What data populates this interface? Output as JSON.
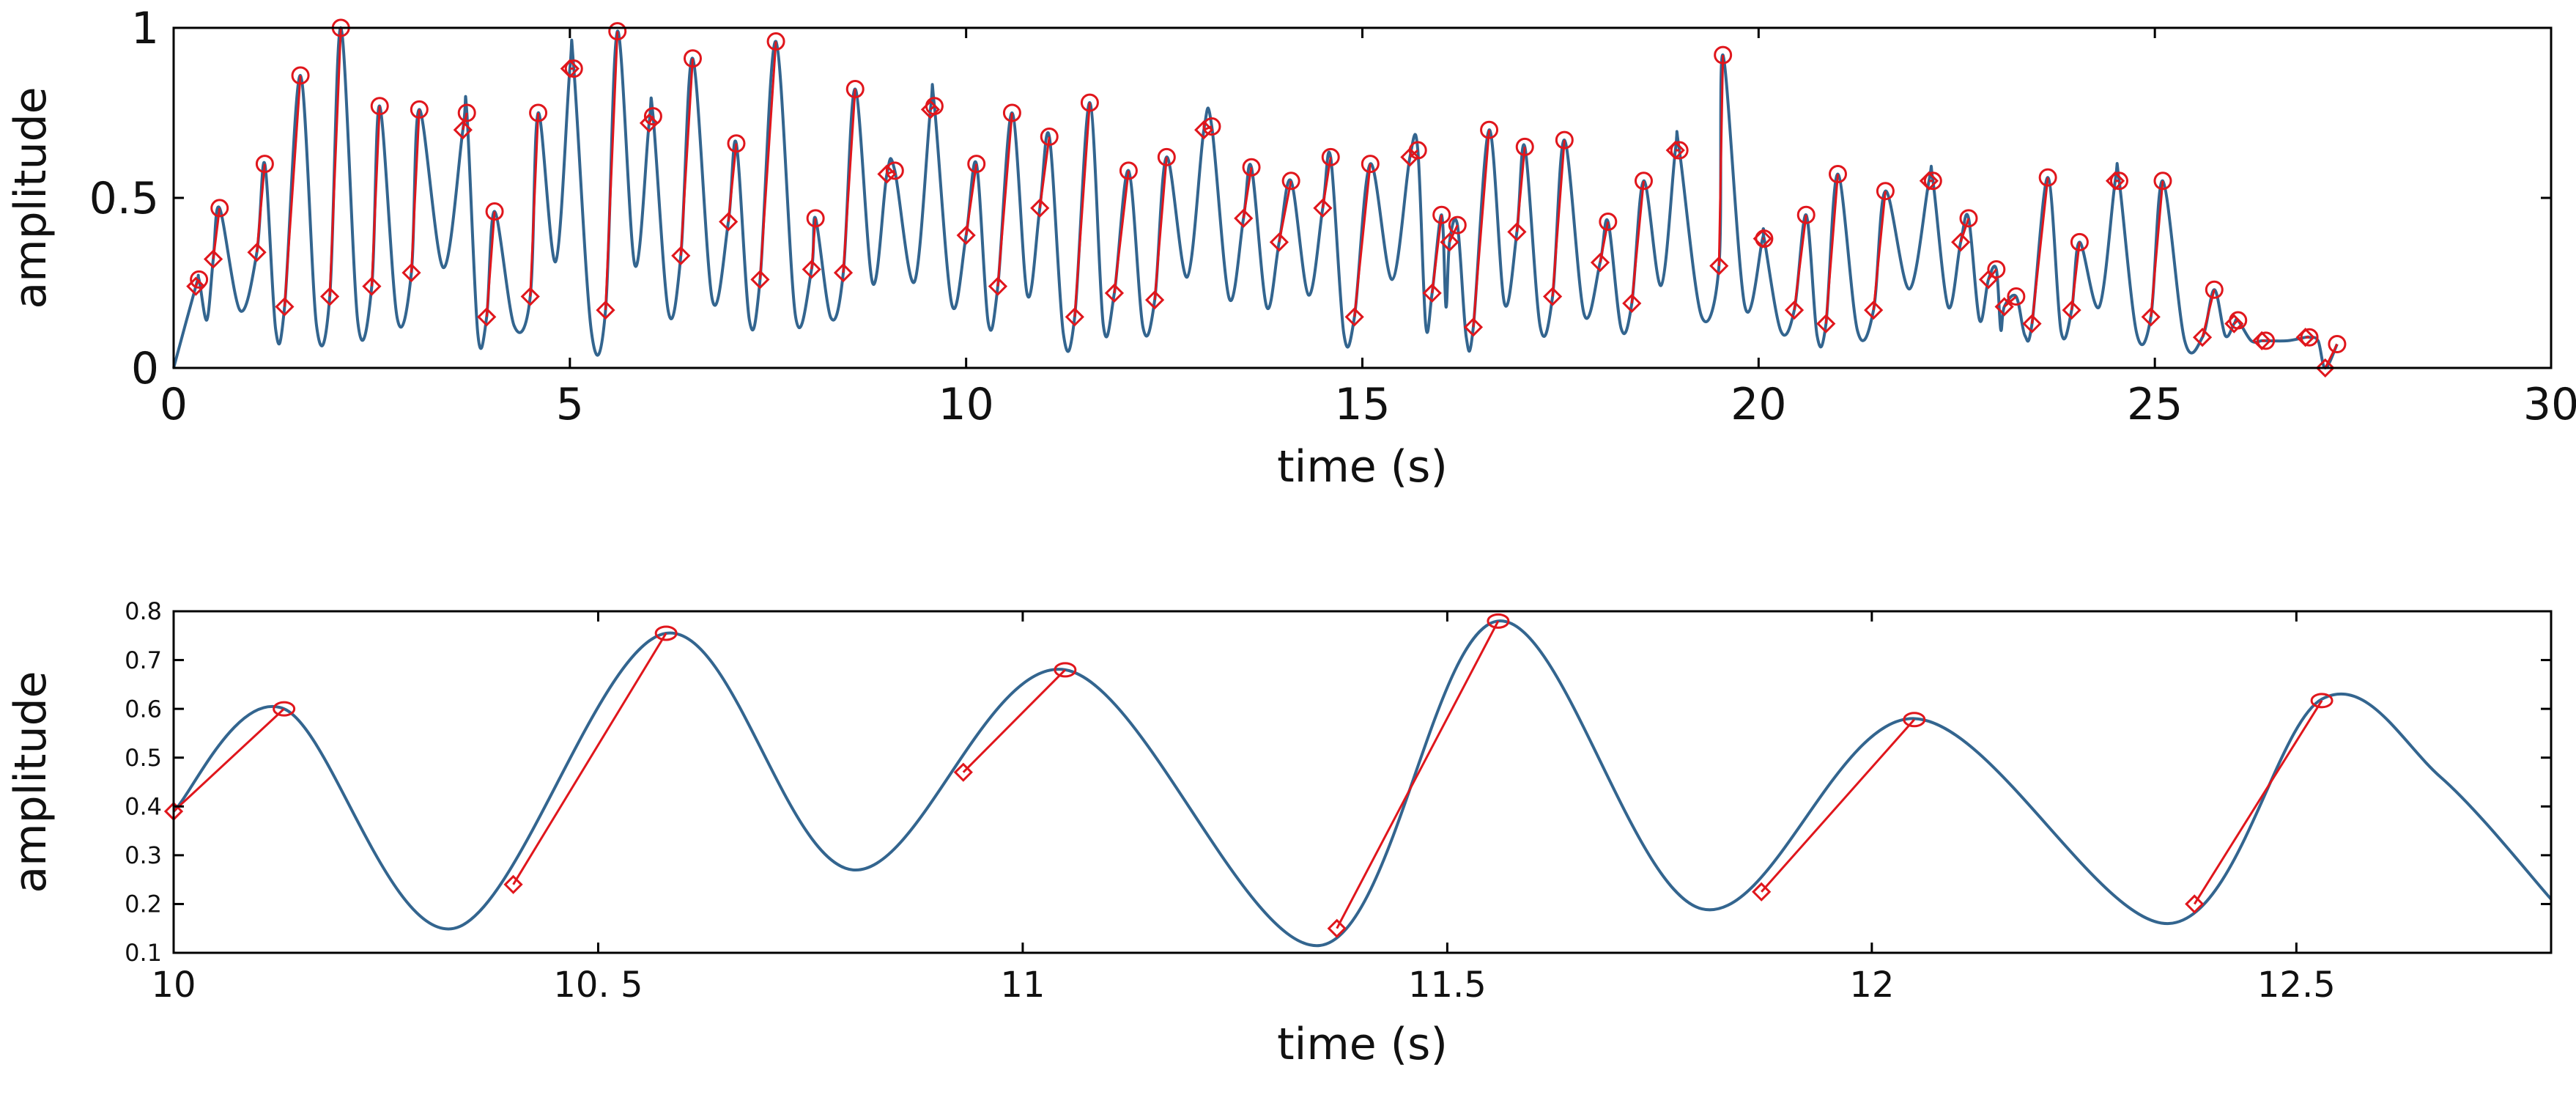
{
  "colors": {
    "signal": "#33658f",
    "marker": "#e0161c",
    "axis": "#000000"
  },
  "chart_data": [
    {
      "type": "line",
      "xlabel": "time (s)",
      "ylabel": "amplitude",
      "xlim": [
        0,
        30
      ],
      "ylim": [
        0,
        1
      ],
      "xticks": [
        0,
        5,
        10,
        15,
        20,
        25,
        30
      ],
      "xtick_labels": [
        "0",
        "5",
        "10",
        "15",
        "20",
        "25",
        "30"
      ],
      "yticks": [
        0,
        0.5,
        1
      ],
      "ytick_labels": [
        "0",
        "0.5",
        "1"
      ],
      "signal_end": 27.3,
      "onset_peak_pairs": [
        [
          0.28,
          0.24,
          0.32,
          0.26
        ],
        [
          0.5,
          0.32,
          0.58,
          0.47
        ],
        [
          1.05,
          0.34,
          1.15,
          0.6
        ],
        [
          1.4,
          0.18,
          1.6,
          0.86
        ],
        [
          1.97,
          0.21,
          2.11,
          1.0
        ],
        [
          2.5,
          0.24,
          2.6,
          0.77
        ],
        [
          3.0,
          0.28,
          3.1,
          0.76
        ],
        [
          3.65,
          0.7,
          3.7,
          0.75
        ],
        [
          3.95,
          0.15,
          4.05,
          0.46
        ],
        [
          4.5,
          0.21,
          4.6,
          0.75
        ],
        [
          5.0,
          0.88,
          5.05,
          0.88
        ],
        [
          5.45,
          0.17,
          5.6,
          0.99
        ],
        [
          6.0,
          0.72,
          6.05,
          0.74
        ],
        [
          6.4,
          0.33,
          6.55,
          0.91
        ],
        [
          7.0,
          0.43,
          7.1,
          0.66
        ],
        [
          7.4,
          0.26,
          7.6,
          0.96
        ],
        [
          8.05,
          0.29,
          8.1,
          0.44
        ],
        [
          8.45,
          0.28,
          8.6,
          0.82
        ],
        [
          9.0,
          0.57,
          9.1,
          0.58
        ],
        [
          9.55,
          0.76,
          9.6,
          0.77
        ],
        [
          10.0,
          0.39,
          10.13,
          0.6
        ],
        [
          10.4,
          0.24,
          10.58,
          0.75
        ],
        [
          10.93,
          0.47,
          11.05,
          0.68
        ],
        [
          11.37,
          0.15,
          11.56,
          0.78
        ],
        [
          11.87,
          0.22,
          12.05,
          0.58
        ],
        [
          12.38,
          0.2,
          12.53,
          0.62
        ],
        [
          13.0,
          0.7,
          13.1,
          0.71
        ],
        [
          13.5,
          0.44,
          13.6,
          0.59
        ],
        [
          13.95,
          0.37,
          14.1,
          0.55
        ],
        [
          14.5,
          0.47,
          14.6,
          0.62
        ],
        [
          14.9,
          0.15,
          15.1,
          0.6
        ],
        [
          15.6,
          0.62,
          15.7,
          0.64
        ],
        [
          15.88,
          0.22,
          16.0,
          0.45
        ],
        [
          16.1,
          0.37,
          16.2,
          0.42
        ],
        [
          16.4,
          0.12,
          16.6,
          0.7
        ],
        [
          16.95,
          0.4,
          17.05,
          0.65
        ],
        [
          17.4,
          0.21,
          17.55,
          0.67
        ],
        [
          18.0,
          0.31,
          18.1,
          0.43
        ],
        [
          18.4,
          0.19,
          18.55,
          0.55
        ],
        [
          18.95,
          0.64,
          19.0,
          0.64
        ],
        [
          19.5,
          0.3,
          19.55,
          0.92
        ],
        [
          20.05,
          0.38,
          20.07,
          0.38
        ],
        [
          20.45,
          0.17,
          20.6,
          0.45
        ],
        [
          20.85,
          0.13,
          21.0,
          0.57
        ],
        [
          21.45,
          0.17,
          21.6,
          0.52
        ],
        [
          22.15,
          0.55,
          22.2,
          0.55
        ],
        [
          22.55,
          0.37,
          22.65,
          0.44
        ],
        [
          22.9,
          0.26,
          23.0,
          0.29
        ],
        [
          23.1,
          0.18,
          23.25,
          0.21
        ],
        [
          23.45,
          0.13,
          23.65,
          0.56
        ],
        [
          23.95,
          0.17,
          24.05,
          0.37
        ],
        [
          24.5,
          0.55,
          24.55,
          0.55
        ],
        [
          24.95,
          0.15,
          25.1,
          0.55
        ],
        [
          25.6,
          0.09,
          25.75,
          0.23
        ],
        [
          26.0,
          0.13,
          26.05,
          0.14
        ],
        [
          26.35,
          0.08,
          26.4,
          0.08
        ],
        [
          26.9,
          0.09,
          26.95,
          0.09
        ],
        [
          27.15,
          0.0,
          27.3,
          0.07
        ]
      ]
    },
    {
      "type": "line",
      "xlabel": "time (s)",
      "ylabel": "amplitude",
      "xlim": [
        10,
        12.8
      ],
      "ylim": [
        0.1,
        0.8
      ],
      "xticks": [
        10,
        10.5,
        11,
        11.5,
        12,
        12.5
      ],
      "xtick_labels": [
        "10",
        "10. 5",
        "11",
        "11.5",
        "12",
        "12.5"
      ],
      "yticks": [
        0.1,
        0.2,
        0.3,
        0.4,
        0.5,
        0.6,
        0.7,
        0.8
      ],
      "ytick_labels": [
        "0.1",
        "0.2",
        "0.3",
        "0.4",
        "0.5",
        "0.6",
        "0.7",
        "0.8"
      ],
      "signal_points": [
        [
          10.0,
          0.39
        ],
        [
          10.13,
          0.6
        ],
        [
          10.33,
          0.15
        ],
        [
          10.58,
          0.755
        ],
        [
          10.8,
          0.27
        ],
        [
          11.05,
          0.68
        ],
        [
          11.35,
          0.115
        ],
        [
          11.56,
          0.78
        ],
        [
          11.8,
          0.19
        ],
        [
          12.05,
          0.58
        ],
        [
          12.35,
          0.16
        ],
        [
          12.53,
          0.62
        ],
        [
          12.67,
          0.46
        ],
        [
          12.8,
          0.21
        ]
      ],
      "onset_peak_pairs": [
        [
          10.0,
          0.39,
          10.13,
          0.6
        ],
        [
          10.4,
          0.24,
          10.58,
          0.755
        ],
        [
          10.93,
          0.47,
          11.05,
          0.68
        ],
        [
          11.37,
          0.15,
          11.56,
          0.78
        ],
        [
          11.87,
          0.225,
          12.05,
          0.578
        ],
        [
          12.38,
          0.2,
          12.53,
          0.617
        ]
      ]
    }
  ]
}
